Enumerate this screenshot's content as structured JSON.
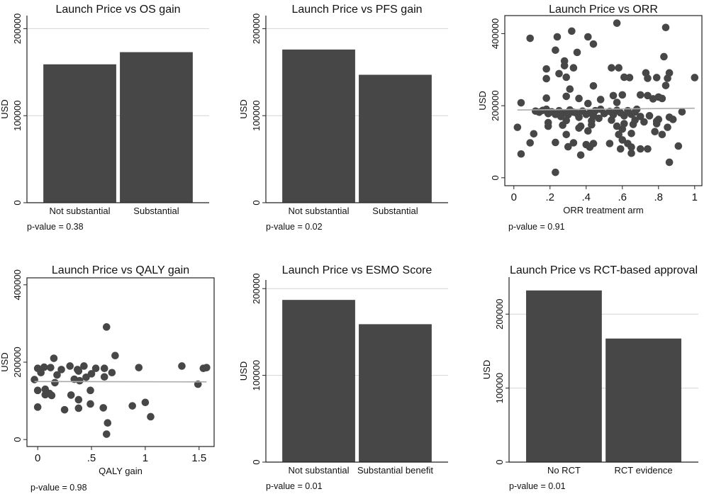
{
  "colors": {
    "bar": "#474747",
    "point": "#474747",
    "fit_line": "#aaaaaa",
    "grid": "#d4d4d4",
    "frame": "#222222"
  },
  "chart_data": [
    {
      "type": "bar",
      "title": "Launch Price vs OS gain",
      "ylabel": "USD",
      "categories": [
        "Not substantial",
        "Substantial"
      ],
      "values": [
        159000,
        173000
      ],
      "yticks": [
        "0",
        "100000",
        "200000"
      ],
      "ytick_values": [
        0,
        100000,
        200000
      ],
      "ylim": [
        0,
        215000
      ],
      "grid": true,
      "note": "p-value = 0.38"
    },
    {
      "type": "bar",
      "title": "Launch Price vs PFS gain",
      "ylabel": "USD",
      "categories": [
        "Not substantial",
        "Substantial"
      ],
      "values": [
        176000,
        147000
      ],
      "yticks": [
        "0",
        "100000",
        "200000"
      ],
      "ytick_values": [
        0,
        100000,
        200000
      ],
      "ylim": [
        0,
        215000
      ],
      "grid": true,
      "note": "p-value = 0.02"
    },
    {
      "type": "scatter",
      "title": "Launch Price vs ORR",
      "ylabel": "USD",
      "xlabel": "ORR treatment arm",
      "xticks": [
        "0",
        ".2",
        ".4",
        ".6",
        ".8",
        "1"
      ],
      "xtick_values": [
        0,
        0.2,
        0.4,
        0.6,
        0.8,
        1
      ],
      "yticks": [
        "0",
        "200000",
        "400000"
      ],
      "ytick_values": [
        0,
        200000,
        400000
      ],
      "xlim": [
        -0.05,
        1.04
      ],
      "ylim": [
        -22000,
        450000
      ],
      "fit_line": {
        "x": [
          0.02,
          1.0
        ],
        "y": [
          188000,
          193000
        ]
      },
      "points": [
        [
          0.09,
          387000
        ],
        [
          0.24,
          391000
        ],
        [
          0.32,
          407000
        ],
        [
          0.41,
          391000
        ],
        [
          0.44,
          371000
        ],
        [
          0.57,
          429000
        ],
        [
          0.84,
          417000
        ],
        [
          0.23,
          354000
        ],
        [
          0.35,
          348000
        ],
        [
          0.83,
          336000
        ],
        [
          0.28,
          324000
        ],
        [
          0.28,
          311000
        ],
        [
          0.18,
          302000
        ],
        [
          0.33,
          305000
        ],
        [
          0.54,
          305000
        ],
        [
          0.58,
          305000
        ],
        [
          0.18,
          275000
        ],
        [
          0.25,
          289000
        ],
        [
          0.29,
          279000
        ],
        [
          0.61,
          279000
        ],
        [
          0.64,
          278000
        ],
        [
          0.73,
          291000
        ],
        [
          0.74,
          276000
        ],
        [
          0.79,
          278000
        ],
        [
          0.85,
          276000
        ],
        [
          0.86,
          291000
        ],
        [
          1.0,
          278000
        ],
        [
          0.31,
          246000
        ],
        [
          0.44,
          255000
        ],
        [
          0.84,
          256000
        ],
        [
          0.29,
          226000
        ],
        [
          0.36,
          220000
        ],
        [
          0.18,
          221000
        ],
        [
          0.55,
          228000
        ],
        [
          0.6,
          230000
        ],
        [
          0.7,
          230000
        ],
        [
          0.74,
          228000
        ],
        [
          0.8,
          224000
        ],
        [
          0.48,
          217000
        ],
        [
          0.41,
          206000
        ],
        [
          0.57,
          209000
        ],
        [
          0.77,
          219000
        ],
        [
          0.82,
          220000
        ],
        [
          0.04,
          208000
        ],
        [
          0.12,
          185000
        ],
        [
          0.14,
          182000
        ],
        [
          0.16,
          187000
        ],
        [
          0.18,
          190000
        ],
        [
          0.19,
          178000
        ],
        [
          0.21,
          183000
        ],
        [
          0.23,
          176000
        ],
        [
          0.25,
          186000
        ],
        [
          0.26,
          170000
        ],
        [
          0.28,
          180000
        ],
        [
          0.3,
          175000
        ],
        [
          0.31,
          188000
        ],
        [
          0.33,
          182000
        ],
        [
          0.35,
          178000
        ],
        [
          0.36,
          168000
        ],
        [
          0.38,
          185000
        ],
        [
          0.4,
          176000
        ],
        [
          0.42,
          180000
        ],
        [
          0.44,
          172000
        ],
        [
          0.45,
          186000
        ],
        [
          0.47,
          165000
        ],
        [
          0.48,
          190000
        ],
        [
          0.5,
          178000
        ],
        [
          0.53,
          184000
        ],
        [
          0.55,
          175000
        ],
        [
          0.57,
          187000
        ],
        [
          0.59,
          180000
        ],
        [
          0.61,
          172000
        ],
        [
          0.63,
          186000
        ],
        [
          0.65,
          176000
        ],
        [
          0.67,
          182000
        ],
        [
          0.68,
          190000
        ],
        [
          0.7,
          170000
        ],
        [
          0.75,
          172000
        ],
        [
          0.8,
          162000
        ],
        [
          0.79,
          157000
        ],
        [
          0.86,
          168000
        ],
        [
          0.88,
          162000
        ],
        [
          0.93,
          183000
        ],
        [
          0.02,
          140000
        ],
        [
          0.11,
          122000
        ],
        [
          0.09,
          97000
        ],
        [
          0.04,
          66000
        ],
        [
          0.19,
          153000
        ],
        [
          0.19,
          143000
        ],
        [
          0.23,
          98000
        ],
        [
          0.23,
          15000
        ],
        [
          0.27,
          146000
        ],
        [
          0.29,
          159000
        ],
        [
          0.29,
          120000
        ],
        [
          0.3,
          86000
        ],
        [
          0.33,
          97000
        ],
        [
          0.37,
          63000
        ],
        [
          0.37,
          143000
        ],
        [
          0.36,
          138000
        ],
        [
          0.4,
          92000
        ],
        [
          0.41,
          130000
        ],
        [
          0.42,
          85000
        ],
        [
          0.43,
          158000
        ],
        [
          0.43,
          147000
        ],
        [
          0.44,
          95000
        ],
        [
          0.53,
          95000
        ],
        [
          0.54,
          160000
        ],
        [
          0.57,
          143000
        ],
        [
          0.58,
          120000
        ],
        [
          0.59,
          80000
        ],
        [
          0.6,
          135000
        ],
        [
          0.6,
          105000
        ],
        [
          0.61,
          150000
        ],
        [
          0.63,
          95000
        ],
        [
          0.65,
          85000
        ],
        [
          0.65,
          68000
        ],
        [
          0.65,
          123000
        ],
        [
          0.66,
          148000
        ],
        [
          0.67,
          160000
        ],
        [
          0.7,
          80000
        ],
        [
          0.74,
          80000
        ],
        [
          0.72,
          155000
        ],
        [
          0.78,
          128000
        ],
        [
          0.79,
          150000
        ],
        [
          0.82,
          120000
        ],
        [
          0.85,
          140000
        ],
        [
          0.86,
          43000
        ],
        [
          0.91,
          88000
        ]
      ],
      "grid": false,
      "note": "p-value = 0.91"
    },
    {
      "type": "scatter",
      "title": "Launch Price vs QALY gain",
      "ylabel": "USD",
      "xlabel": "QALY gain",
      "xticks": [
        "0",
        ".5",
        "1",
        "1.5"
      ],
      "xtick_values": [
        0,
        0.5,
        1,
        1.5
      ],
      "yticks": [
        "0",
        "200000",
        "400000"
      ],
      "ytick_values": [
        0,
        200000,
        400000
      ],
      "xlim": [
        -0.1,
        1.64
      ],
      "ylim": [
        -18000,
        418000
      ],
      "fit_line": {
        "x": [
          -0.03,
          1.57
        ],
        "y": [
          150000,
          149000
        ]
      },
      "points": [
        [
          -0.03,
          155000
        ],
        [
          0.0,
          184000
        ],
        [
          0.03,
          173000
        ],
        [
          0.06,
          187000
        ],
        [
          0.12,
          186000
        ],
        [
          0.0,
          127000
        ],
        [
          0.0,
          84000
        ],
        [
          0.07,
          130000
        ],
        [
          0.11,
          119000
        ],
        [
          0.13,
          114000
        ],
        [
          0.07,
          116000
        ],
        [
          0.15,
          210000
        ],
        [
          0.16,
          147000
        ],
        [
          0.18,
          167000
        ],
        [
          0.22,
          181000
        ],
        [
          0.25,
          77000
        ],
        [
          0.3,
          190000
        ],
        [
          0.31,
          115000
        ],
        [
          0.34,
          156000
        ],
        [
          0.37,
          181000
        ],
        [
          0.38,
          177000
        ],
        [
          0.38,
          103000
        ],
        [
          0.38,
          81000
        ],
        [
          0.39,
          152000
        ],
        [
          0.43,
          190000
        ],
        [
          0.45,
          161000
        ],
        [
          0.49,
          127000
        ],
        [
          0.49,
          92000
        ],
        [
          0.5,
          170000
        ],
        [
          0.54,
          184000
        ],
        [
          0.62,
          184000
        ],
        [
          0.62,
          162000
        ],
        [
          0.61,
          82000
        ],
        [
          0.64,
          291000
        ],
        [
          0.69,
          173000
        ],
        [
          0.72,
          217000
        ],
        [
          0.65,
          43000
        ],
        [
          0.64,
          14000
        ],
        [
          0.88,
          87000
        ],
        [
          0.94,
          186000
        ],
        [
          1.0,
          96000
        ],
        [
          1.05,
          59000
        ],
        [
          1.34,
          190000
        ],
        [
          1.49,
          143000
        ],
        [
          1.54,
          184000
        ],
        [
          1.57,
          186000
        ]
      ],
      "grid": false,
      "note": "p-value = 0.98"
    },
    {
      "type": "bar",
      "title": "Launch Price vs ESMO Score",
      "ylabel": "USD",
      "categories": [
        "Not substantial",
        "Substantial benefit"
      ],
      "values": [
        187000,
        159000
      ],
      "yticks": [
        "0",
        "100000",
        "200000"
      ],
      "ytick_values": [
        0,
        100000,
        200000
      ],
      "ylim": [
        0,
        210000
      ],
      "grid": true,
      "note": "p-value = 0.01"
    },
    {
      "type": "bar",
      "title": "Launch Price vs RCT-based approval",
      "ylabel": "USD",
      "categories": [
        "No RCT",
        "RCT evidence"
      ],
      "values": [
        232000,
        167000
      ],
      "yticks": [
        "0",
        "100000",
        "200000"
      ],
      "ytick_values": [
        0,
        100000,
        200000
      ],
      "ylim": [
        0,
        250000
      ],
      "grid": true,
      "note": "p-value = 0.01"
    }
  ]
}
